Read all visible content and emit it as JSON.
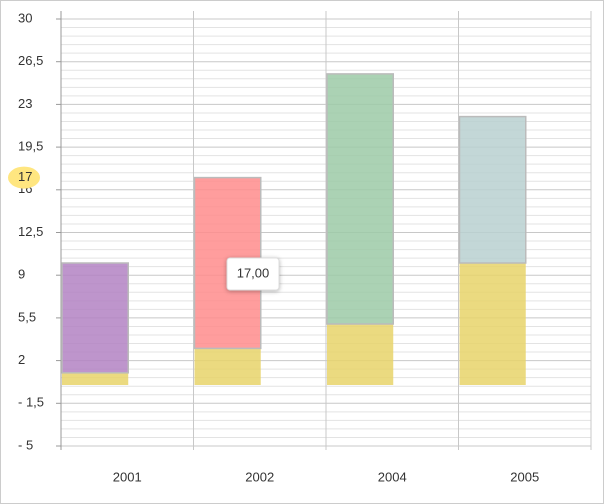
{
  "chart_data": {
    "type": "stacked-bar",
    "categories": [
      "2001",
      "2002",
      "2004",
      "2005"
    ],
    "series": [
      {
        "color": "#e8d46a",
        "values": [
          1,
          3,
          5,
          10
        ]
      },
      {
        "colors": [
          "#b383c3",
          "#ff8c8c",
          "#9ccaa7",
          "#b9d0d0"
        ],
        "values": [
          9,
          14,
          20.5,
          12
        ]
      }
    ],
    "ylim": [
      -5,
      30
    ],
    "yticks": [
      {
        "value": -5,
        "label": "- 5"
      },
      {
        "value": -1.5,
        "label": "- 1,5"
      },
      2,
      {
        "value": 5.5,
        "label": "5,5"
      },
      9,
      {
        "value": 12.5,
        "label": "12,5"
      },
      16,
      {
        "value": 19.5,
        "label": "19,5"
      },
      23,
      {
        "value": 26.5,
        "label": "26,5"
      },
      30
    ],
    "grid": true,
    "highlight": {
      "value": 17,
      "tooltip": "17,00"
    }
  }
}
